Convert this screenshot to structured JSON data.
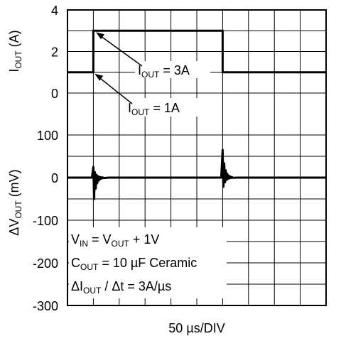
{
  "chart_data": {
    "type": "line",
    "xlabel": "50 µs/DIV",
    "x_divisions": 10,
    "grid": true,
    "top_panel": {
      "ylabel_main": "I",
      "ylabel_sub": "OUT",
      "ylabel_unit": " (A)",
      "ylim": [
        0,
        4
      ],
      "ticks": [
        "0",
        "2",
        "4"
      ],
      "tick_values": [
        0,
        2,
        4
      ],
      "series": {
        "x": [
          0,
          1,
          1,
          6,
          6,
          10
        ],
        "y": [
          1,
          1,
          3,
          3,
          1,
          1
        ]
      },
      "annotations": [
        {
          "main": "I",
          "sub": "OUT",
          "rest": " = 3A"
        },
        {
          "main": "I",
          "sub": "OUT",
          "rest": " = 1A"
        }
      ]
    },
    "bottom_panel": {
      "ylabel_prefix": "ΔV",
      "ylabel_sub": "OUT",
      "ylabel_unit": " (mV)",
      "ylim": [
        -300,
        100
      ],
      "ticks": [
        "100",
        "0",
        "-100",
        "-200",
        "-300"
      ],
      "tick_values": [
        100,
        0,
        -100,
        -200,
        -300
      ],
      "transients": [
        {
          "x": 1.0,
          "peak_high": 25,
          "peak_low": -70
        },
        {
          "x": 6.0,
          "peak_high": 65,
          "peak_low": -30
        }
      ],
      "conditions": [
        {
          "a": "V",
          "asub": "IN",
          "b": " = V",
          "bsub": "OUT",
          "c": " + 1V"
        },
        {
          "a": "C",
          "asub": "OUT",
          "b": " = 10 µF Ceramic",
          "bsub": "",
          "c": ""
        },
        {
          "a": "ΔI",
          "asub": "OUT",
          "b": " / Δt = 3A/µs",
          "bsub": "",
          "c": ""
        }
      ]
    }
  }
}
